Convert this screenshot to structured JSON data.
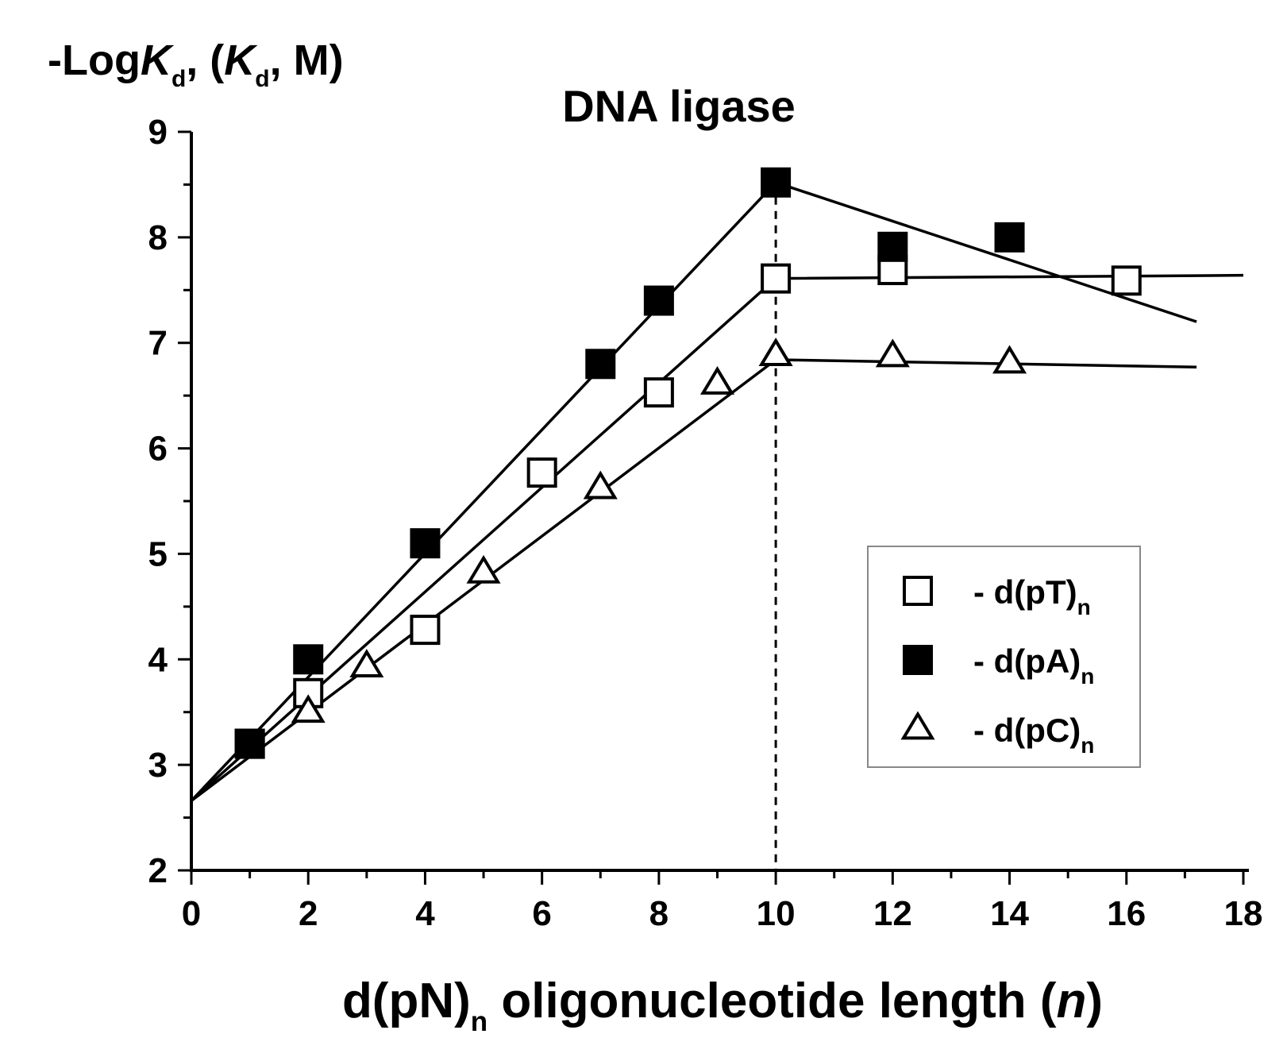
{
  "chart_data": {
    "type": "scatter",
    "title": "DNA ligase",
    "ylabel": {
      "parts": [
        {
          "text": "-Log",
          "italic": false,
          "sub": false
        },
        {
          "text": "K",
          "italic": true,
          "sub": false
        },
        {
          "text": "d",
          "italic": false,
          "sub": true
        },
        {
          "text": ", (",
          "italic": false,
          "sub": false
        },
        {
          "text": "K",
          "italic": true,
          "sub": false
        },
        {
          "text": "d",
          "italic": false,
          "sub": true
        },
        {
          "text": ", M)",
          "italic": false,
          "sub": false
        }
      ]
    },
    "xlabel": {
      "parts": [
        {
          "text": "d(pN)",
          "italic": false,
          "sub": false
        },
        {
          "text": "n",
          "italic": false,
          "sub": true
        },
        {
          "text": " oligonucleotide length (",
          "italic": false,
          "sub": false
        },
        {
          "text": "n",
          "italic": true,
          "sub": false
        },
        {
          "text": ")",
          "italic": false,
          "sub": false
        }
      ]
    },
    "xlim": [
      0,
      18
    ],
    "ylim": [
      2,
      9
    ],
    "xticks": [
      0,
      2,
      4,
      6,
      8,
      10,
      12,
      14,
      16,
      18
    ],
    "yticks": [
      2,
      3,
      4,
      5,
      6,
      7,
      8,
      9
    ],
    "xtick_labels": [
      "0",
      "2",
      "4",
      "6",
      "8",
      "10",
      "12",
      "14",
      "16",
      "18"
    ],
    "ytick_labels": [
      "2",
      "3",
      "4",
      "5",
      "6",
      "7",
      "8",
      "9"
    ],
    "grid": false,
    "legend_position": "bottom-right",
    "reference_line": {
      "x": 10,
      "style": "dashed"
    },
    "series": [
      {
        "name": "- d(pT)",
        "name_sub": "n",
        "marker": "open-square",
        "points": [
          [
            1,
            3.2
          ],
          [
            2,
            3.68
          ],
          [
            4,
            4.28
          ],
          [
            6,
            5.77
          ],
          [
            8,
            6.53
          ],
          [
            10,
            7.61
          ],
          [
            12,
            7.69
          ],
          [
            16,
            7.59
          ]
        ],
        "fit": [
          [
            0,
            2.66
          ],
          [
            10,
            7.61
          ],
          [
            18,
            7.64
          ]
        ]
      },
      {
        "name": "- d(pA)",
        "name_sub": "n",
        "marker": "filled-square",
        "points": [
          [
            1,
            3.2
          ],
          [
            2,
            4.0
          ],
          [
            4,
            5.1
          ],
          [
            7,
            6.8
          ],
          [
            8,
            7.4
          ],
          [
            10,
            8.52
          ],
          [
            12,
            7.91
          ],
          [
            14,
            8.0
          ]
        ],
        "fit": [
          [
            0,
            2.66
          ],
          [
            10,
            8.52
          ],
          [
            17.2,
            7.2
          ]
        ]
      },
      {
        "name": "- d(pC)",
        "name_sub": "n",
        "marker": "open-triangle",
        "points": [
          [
            2,
            3.5
          ],
          [
            3,
            3.93
          ],
          [
            5,
            4.82
          ],
          [
            7,
            5.62
          ],
          [
            9,
            6.61
          ],
          [
            10,
            6.88
          ],
          [
            12,
            6.87
          ],
          [
            14,
            6.81
          ]
        ],
        "fit": [
          [
            0,
            2.66
          ],
          [
            10,
            6.84
          ],
          [
            17.2,
            6.77
          ]
        ]
      }
    ]
  }
}
